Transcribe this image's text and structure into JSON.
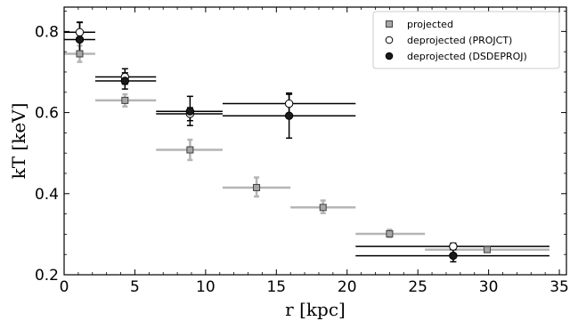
{
  "chart_data": {
    "type": "scatter",
    "xlabel": "r [kpc]",
    "ylabel": "kT [keV]",
    "xlim": [
      0,
      35.5
    ],
    "ylim": [
      0.2,
      0.86
    ],
    "xticks": [
      0,
      5,
      10,
      15,
      20,
      25,
      30,
      35
    ],
    "yticks": [
      0.2,
      0.4,
      0.6,
      0.8
    ],
    "legend_position": "top-right",
    "grid": false,
    "series": [
      {
        "name": "projected",
        "marker": "square",
        "color": "#a6a6a6",
        "points": [
          {
            "x": 1.1,
            "y": 0.745,
            "xlo": 0.0,
            "xhi": 2.2,
            "ylo": 0.725,
            "yhi": 0.765
          },
          {
            "x": 4.3,
            "y": 0.63,
            "xlo": 2.2,
            "xhi": 6.5,
            "ylo": 0.615,
            "yhi": 0.645
          },
          {
            "x": 8.9,
            "y": 0.508,
            "xlo": 6.5,
            "xhi": 11.2,
            "ylo": 0.483,
            "yhi": 0.533
          },
          {
            "x": 13.6,
            "y": 0.415,
            "xlo": 11.2,
            "xhi": 16.0,
            "ylo": 0.393,
            "yhi": 0.44
          },
          {
            "x": 18.3,
            "y": 0.366,
            "xlo": 16.0,
            "xhi": 20.6,
            "ylo": 0.352,
            "yhi": 0.383
          },
          {
            "x": 23.0,
            "y": 0.301,
            "xlo": 20.6,
            "xhi": 25.5,
            "ylo": 0.293,
            "yhi": 0.311
          },
          {
            "x": 29.9,
            "y": 0.262,
            "xlo": 25.5,
            "xhi": 34.3,
            "ylo": 0.257,
            "yhi": 0.267
          }
        ]
      },
      {
        "name": "deprojected (PROJCT)",
        "marker": "open-circle",
        "color": "#000000",
        "points": [
          {
            "x": 1.1,
            "y": 0.798,
            "xlo": 0.0,
            "xhi": 2.2,
            "ylo": 0.778,
            "yhi": 0.823
          },
          {
            "x": 4.3,
            "y": 0.688,
            "xlo": 2.2,
            "xhi": 6.5,
            "ylo": 0.67,
            "yhi": 0.708
          },
          {
            "x": 8.9,
            "y": 0.597,
            "xlo": 6.5,
            "xhi": 11.2,
            "ylo": 0.58,
            "yhi": 0.612
          },
          {
            "x": 15.9,
            "y": 0.622,
            "xlo": 11.2,
            "xhi": 20.6,
            "ylo": 0.596,
            "yhi": 0.648
          },
          {
            "x": 27.5,
            "y": 0.27,
            "xlo": 20.6,
            "xhi": 34.3,
            "ylo": 0.262,
            "yhi": 0.278
          }
        ]
      },
      {
        "name": "deprojected (DSDEPROJ)",
        "marker": "filled-circle",
        "color": "#1a1a1a",
        "points": [
          {
            "x": 1.1,
            "y": 0.78,
            "xlo": 0.0,
            "xhi": 2.2,
            "ylo": 0.738,
            "yhi": 0.822
          },
          {
            "x": 4.3,
            "y": 0.678,
            "xlo": 2.2,
            "xhi": 6.5,
            "ylo": 0.658,
            "yhi": 0.698
          },
          {
            "x": 8.9,
            "y": 0.603,
            "xlo": 6.5,
            "xhi": 11.2,
            "ylo": 0.568,
            "yhi": 0.64
          },
          {
            "x": 15.9,
            "y": 0.592,
            "xlo": 11.2,
            "xhi": 20.6,
            "ylo": 0.537,
            "yhi": 0.645
          },
          {
            "x": 27.5,
            "y": 0.247,
            "xlo": 20.6,
            "xhi": 34.3,
            "ylo": 0.232,
            "yhi": 0.262
          }
        ]
      }
    ]
  }
}
